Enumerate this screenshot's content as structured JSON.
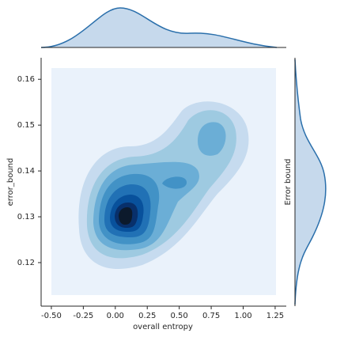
{
  "chart_data": {
    "type": "kde_joint",
    "x_label": "overall entropy",
    "y_label": "error_bound",
    "marginal_y_label": "Error bound",
    "xlim": [
      -0.58,
      1.337
    ],
    "ylim": [
      0.1105,
      0.1647
    ],
    "xticks": [
      {
        "value": -0.5,
        "label": "-0.50"
      },
      {
        "value": -0.25,
        "label": "-0.25"
      },
      {
        "value": 0,
        "label": "0.00"
      },
      {
        "value": 0.25,
        "label": "0.25"
      },
      {
        "value": 0.5,
        "label": "0.50"
      },
      {
        "value": 0.75,
        "label": "0.75"
      },
      {
        "value": 1,
        "label": "1.00"
      },
      {
        "value": 1.25,
        "label": "1.25"
      }
    ],
    "yticks": [
      0.12,
      0.13,
      0.14,
      0.15,
      0.16
    ],
    "grid": false
  }
}
